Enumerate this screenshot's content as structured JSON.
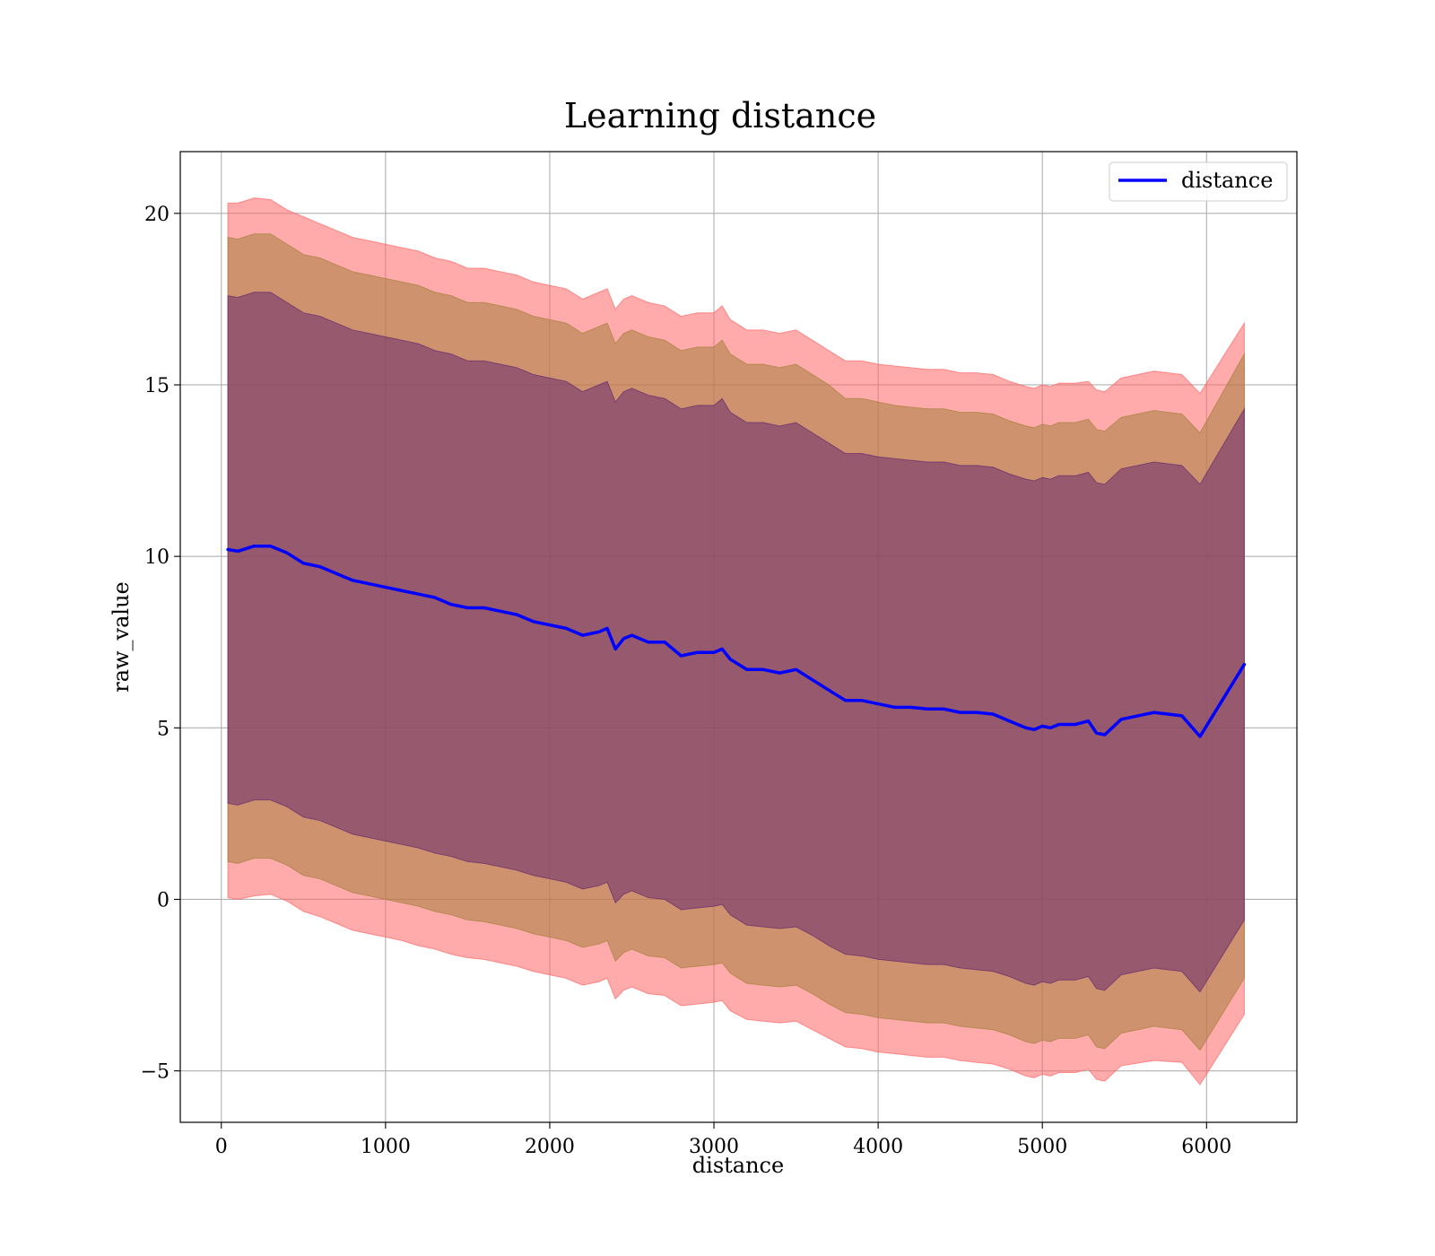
{
  "chart_data": {
    "type": "line",
    "title": "Learning distance",
    "xlabel": "distance",
    "ylabel": "raw_value",
    "xlim": [
      -250,
      6550
    ],
    "ylim": [
      -6.5,
      21.8
    ],
    "xticks": [
      0,
      1000,
      2000,
      3000,
      4000,
      5000,
      6000
    ],
    "yticks": [
      -5,
      0,
      5,
      10,
      15,
      20
    ],
    "ytick_labels": [
      "−5",
      "0",
      "5",
      "10",
      "15",
      "20"
    ],
    "grid": true,
    "legend": {
      "position": "top-right",
      "entries": [
        "distance"
      ]
    },
    "colors": {
      "line": "#0000ff",
      "outer_band": "#ff6666",
      "middle_band": "#a6803d",
      "inner_band": "#6a2a6e",
      "grid": "#b0b0b0"
    },
    "series": [
      {
        "name": "distance",
        "x": [
          40,
          100,
          200,
          300,
          400,
          500,
          600,
          700,
          800,
          900,
          1000,
          1100,
          1200,
          1300,
          1400,
          1500,
          1600,
          1700,
          1800,
          1900,
          2000,
          2100,
          2200,
          2300,
          2350,
          2400,
          2450,
          2500,
          2600,
          2700,
          2800,
          2900,
          3000,
          3050,
          3100,
          3200,
          3300,
          3400,
          3500,
          3600,
          3700,
          3800,
          3900,
          4000,
          4100,
          4200,
          4300,
          4400,
          4500,
          4600,
          4700,
          4800,
          4900,
          4950,
          5000,
          5050,
          5100,
          5200,
          5280,
          5330,
          5380,
          5480,
          5680,
          5850,
          5960,
          6230
        ],
        "y": [
          10.2,
          10.15,
          10.3,
          10.3,
          10.1,
          9.8,
          9.7,
          9.5,
          9.3,
          9.2,
          9.1,
          9.0,
          8.9,
          8.8,
          8.6,
          8.5,
          8.5,
          8.4,
          8.3,
          8.1,
          8.0,
          7.9,
          7.7,
          7.8,
          7.9,
          7.3,
          7.6,
          7.7,
          7.5,
          7.5,
          7.1,
          7.2,
          7.2,
          7.3,
          7.0,
          6.7,
          6.7,
          6.6,
          6.7,
          6.4,
          6.1,
          5.8,
          5.8,
          5.7,
          5.6,
          5.6,
          5.55,
          5.55,
          5.45,
          5.45,
          5.4,
          5.2,
          5.0,
          4.95,
          5.05,
          5.0,
          5.1,
          5.1,
          5.2,
          4.85,
          4.8,
          5.25,
          5.45,
          5.35,
          4.75,
          6.85
        ]
      }
    ],
    "bands": [
      {
        "level": "outer",
        "upper": [
          20.3,
          20.3,
          20.45,
          20.4,
          20.1,
          19.9,
          19.7,
          19.5,
          19.3,
          19.2,
          19.1,
          19.0,
          18.9,
          18.7,
          18.6,
          18.4,
          18.4,
          18.3,
          18.2,
          18.0,
          17.9,
          17.8,
          17.5,
          17.7,
          17.8,
          17.2,
          17.5,
          17.6,
          17.4,
          17.3,
          17.0,
          17.1,
          17.1,
          17.3,
          16.9,
          16.6,
          16.6,
          16.5,
          16.6,
          16.3,
          16.0,
          15.7,
          15.7,
          15.6,
          15.55,
          15.5,
          15.45,
          15.45,
          15.35,
          15.35,
          15.3,
          15.1,
          14.95,
          14.9,
          15.0,
          14.95,
          15.05,
          15.05,
          15.1,
          14.85,
          14.8,
          15.2,
          15.4,
          15.3,
          14.75,
          16.8
        ],
        "lower": [
          0.05,
          0.0,
          0.1,
          0.15,
          -0.05,
          -0.35,
          -0.5,
          -0.7,
          -0.9,
          -1.0,
          -1.1,
          -1.2,
          -1.35,
          -1.45,
          -1.6,
          -1.7,
          -1.75,
          -1.85,
          -1.95,
          -2.1,
          -2.2,
          -2.3,
          -2.5,
          -2.4,
          -2.3,
          -2.9,
          -2.65,
          -2.55,
          -2.75,
          -2.8,
          -3.1,
          -3.05,
          -3.0,
          -2.95,
          -3.25,
          -3.5,
          -3.55,
          -3.6,
          -3.55,
          -3.8,
          -4.05,
          -4.3,
          -4.35,
          -4.45,
          -4.5,
          -4.55,
          -4.6,
          -4.6,
          -4.7,
          -4.75,
          -4.8,
          -4.95,
          -5.15,
          -5.2,
          -5.1,
          -5.15,
          -5.05,
          -5.05,
          -4.95,
          -5.25,
          -5.3,
          -4.85,
          -4.7,
          -4.75,
          -5.4,
          -3.35
        ]
      },
      {
        "level": "middle",
        "upper": [
          19.3,
          19.25,
          19.4,
          19.4,
          19.1,
          18.8,
          18.7,
          18.5,
          18.3,
          18.2,
          18.1,
          18.0,
          17.9,
          17.7,
          17.6,
          17.4,
          17.4,
          17.3,
          17.2,
          17.0,
          16.9,
          16.8,
          16.5,
          16.7,
          16.8,
          16.2,
          16.5,
          16.6,
          16.4,
          16.3,
          16.0,
          16.1,
          16.1,
          16.3,
          15.9,
          15.6,
          15.6,
          15.5,
          15.6,
          15.3,
          15.0,
          14.6,
          14.6,
          14.5,
          14.4,
          14.35,
          14.3,
          14.3,
          14.2,
          14.2,
          14.15,
          13.95,
          13.8,
          13.75,
          13.85,
          13.8,
          13.9,
          13.9,
          14.0,
          13.7,
          13.65,
          14.05,
          14.25,
          14.15,
          13.6,
          15.9
        ],
        "lower": [
          1.1,
          1.05,
          1.2,
          1.2,
          1.0,
          0.7,
          0.6,
          0.4,
          0.2,
          0.1,
          0.0,
          -0.1,
          -0.2,
          -0.35,
          -0.45,
          -0.6,
          -0.65,
          -0.75,
          -0.85,
          -1.0,
          -1.1,
          -1.2,
          -1.4,
          -1.3,
          -1.2,
          -1.8,
          -1.55,
          -1.45,
          -1.65,
          -1.7,
          -2.0,
          -1.95,
          -1.9,
          -1.85,
          -2.15,
          -2.45,
          -2.5,
          -2.55,
          -2.5,
          -2.75,
          -3.05,
          -3.3,
          -3.35,
          -3.45,
          -3.5,
          -3.55,
          -3.6,
          -3.6,
          -3.7,
          -3.75,
          -3.8,
          -3.95,
          -4.15,
          -4.2,
          -4.1,
          -4.15,
          -4.05,
          -4.05,
          -3.95,
          -4.3,
          -4.35,
          -3.9,
          -3.7,
          -3.8,
          -4.4,
          -2.3
        ]
      },
      {
        "level": "inner",
        "upper": [
          17.6,
          17.55,
          17.7,
          17.7,
          17.4,
          17.1,
          17.0,
          16.8,
          16.6,
          16.5,
          16.4,
          16.3,
          16.2,
          16.0,
          15.9,
          15.7,
          15.7,
          15.6,
          15.5,
          15.3,
          15.2,
          15.1,
          14.8,
          15.0,
          15.1,
          14.5,
          14.8,
          14.9,
          14.7,
          14.6,
          14.3,
          14.4,
          14.4,
          14.6,
          14.2,
          13.9,
          13.9,
          13.8,
          13.9,
          13.6,
          13.3,
          13.0,
          13.0,
          12.9,
          12.85,
          12.8,
          12.75,
          12.75,
          12.65,
          12.65,
          12.6,
          12.4,
          12.25,
          12.2,
          12.3,
          12.25,
          12.35,
          12.35,
          12.45,
          12.15,
          12.1,
          12.55,
          12.75,
          12.65,
          12.1,
          14.3
        ],
        "lower": [
          2.8,
          2.75,
          2.9,
          2.9,
          2.7,
          2.4,
          2.3,
          2.1,
          1.9,
          1.8,
          1.7,
          1.6,
          1.5,
          1.35,
          1.25,
          1.1,
          1.05,
          0.95,
          0.85,
          0.7,
          0.6,
          0.5,
          0.3,
          0.4,
          0.5,
          -0.1,
          0.15,
          0.25,
          0.05,
          0.0,
          -0.3,
          -0.25,
          -0.2,
          -0.15,
          -0.45,
          -0.75,
          -0.8,
          -0.85,
          -0.8,
          -1.05,
          -1.35,
          -1.6,
          -1.65,
          -1.75,
          -1.8,
          -1.85,
          -1.9,
          -1.9,
          -2.0,
          -2.05,
          -2.1,
          -2.25,
          -2.45,
          -2.5,
          -2.4,
          -2.45,
          -2.35,
          -2.35,
          -2.25,
          -2.6,
          -2.65,
          -2.2,
          -2.0,
          -2.1,
          -2.7,
          -0.6
        ]
      }
    ]
  }
}
